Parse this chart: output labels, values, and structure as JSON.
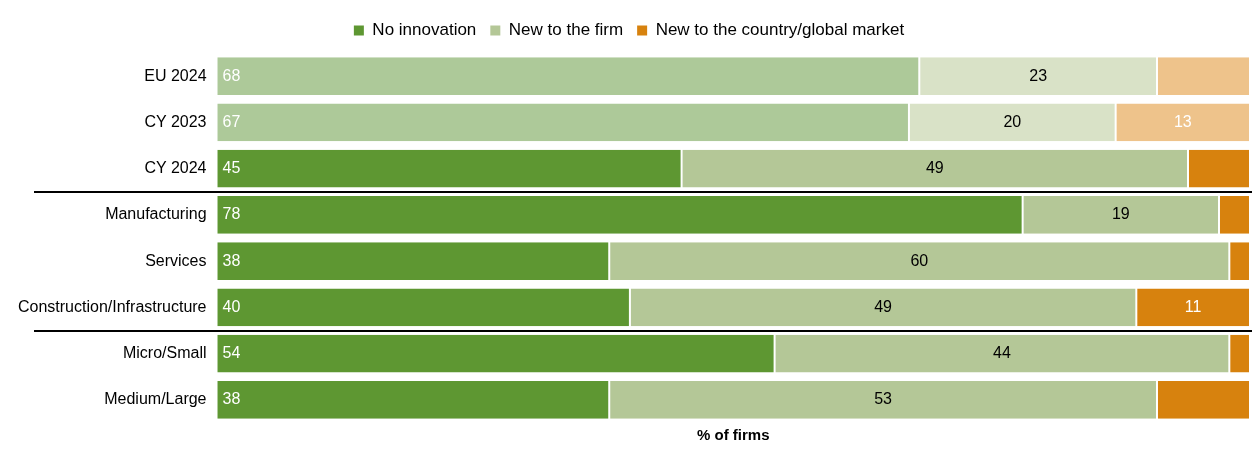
{
  "chart_data": {
    "type": "bar",
    "orientation": "horizontal",
    "stacked": true,
    "xlabel": "% of firms",
    "categories": [
      "EU 2024",
      "CY 2023",
      "CY 2024",
      "Manufacturing",
      "Services",
      "Construction/Infrastructure",
      "Micro/Small",
      "Medium/Large"
    ],
    "series": [
      {
        "name": "No innovation",
        "color": "#5e9732",
        "colors": [
          "#adc999",
          "#adc999",
          "#5e9732",
          "#5e9732",
          "#5e9732",
          "#5e9732",
          "#5e9732",
          "#5e9732"
        ],
        "values": [
          68,
          67,
          45,
          78,
          38,
          40,
          54,
          38
        ],
        "value_labels": [
          "68",
          "67",
          "45",
          "78",
          "38",
          "40",
          "54",
          "38"
        ]
      },
      {
        "name": "New to the firm",
        "color": "#b4c797",
        "colors": [
          "#d9e2c7",
          "#d9e2c7",
          "#b4c797",
          "#b4c797",
          "#b4c797",
          "#b4c797",
          "#b4c797",
          "#b4c797"
        ],
        "values": [
          23,
          20,
          49,
          19,
          60,
          49,
          44,
          53
        ],
        "value_labels": [
          "23",
          "20",
          "49",
          "19",
          "60",
          "49",
          "44",
          "53"
        ]
      },
      {
        "name": "New to the country/global market",
        "color": "#d7820e",
        "colors": [
          "#eec38b",
          "#eec38b",
          "#d7820e",
          "#d7820e",
          "#d7820e",
          "#d7820e",
          "#d7820e",
          "#d7820e"
        ],
        "values": [
          9,
          13,
          6,
          3,
          2,
          11,
          2,
          9
        ],
        "value_labels": [
          null,
          "13",
          null,
          null,
          null,
          "11",
          null,
          null
        ]
      }
    ],
    "xlim": [
      0,
      100
    ],
    "tick_labels": "y",
    "legend": "top",
    "grid": false
  }
}
